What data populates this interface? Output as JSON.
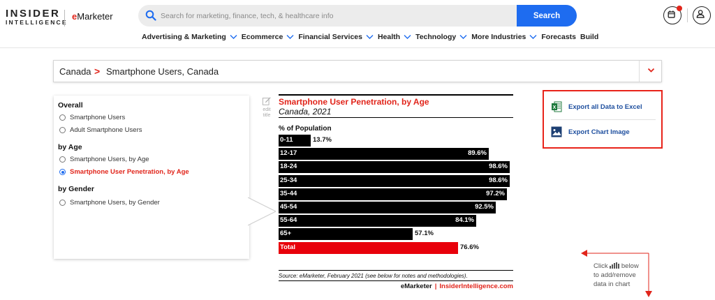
{
  "header": {
    "logo_top": "INSIDER",
    "logo_bottom": "INTELLIGENCE",
    "emarketer_e": "e",
    "emarketer_rest": "Marketer",
    "search_placeholder": "Search for marketing, finance, tech, & healthcare info",
    "search_button": "Search",
    "nav": [
      {
        "label": "Advertising & Marketing",
        "has_dropdown": true
      },
      {
        "label": "Ecommerce",
        "has_dropdown": true
      },
      {
        "label": "Financial Services",
        "has_dropdown": true
      },
      {
        "label": "Health",
        "has_dropdown": true
      },
      {
        "label": "Technology",
        "has_dropdown": true
      },
      {
        "label": "More Industries",
        "has_dropdown": true
      },
      {
        "label": "Forecasts",
        "has_dropdown": false
      },
      {
        "label": "Build",
        "has_dropdown": false
      }
    ],
    "icons": [
      "calendar-icon",
      "user-icon"
    ]
  },
  "breadcrumb": {
    "root": "Canada",
    "separator": ">",
    "current": "Smartphone Users, Canada"
  },
  "panel": {
    "groups": [
      {
        "title": "Overall",
        "options": [
          {
            "label": "Smartphone Users",
            "selected": false
          },
          {
            "label": "Adult Smartphone Users",
            "selected": false
          }
        ]
      },
      {
        "title": "by Age",
        "options": [
          {
            "label": "Smartphone Users, by Age",
            "selected": false
          },
          {
            "label": "Smartphone User Penetration, by Age",
            "selected": true
          }
        ]
      },
      {
        "title": "by Gender",
        "options": [
          {
            "label": "Smartphone Users, by Gender",
            "selected": false
          }
        ]
      }
    ]
  },
  "edit": {
    "line1": "edit",
    "line2": "title"
  },
  "chart_data": {
    "type": "bar",
    "orientation": "horizontal",
    "title": "Smartphone User Penetration, by Age",
    "subtitle": "Canada, 2021",
    "ylabel": "% of Population",
    "categories": [
      "0-11",
      "12-17",
      "18-24",
      "25-34",
      "35-44",
      "45-54",
      "55-64",
      "65+",
      "Total"
    ],
    "values": [
      13.7,
      89.6,
      98.6,
      98.6,
      97.2,
      92.5,
      84.1,
      57.1,
      76.6
    ],
    "value_labels": [
      "13.7%",
      "89.6%",
      "98.6%",
      "98.6%",
      "97.2%",
      "92.5%",
      "84.1%",
      "57.1%",
      "76.6%"
    ],
    "highlight": {
      "category": "Total",
      "color": "#e8000b"
    },
    "bar_color": "#000000",
    "xlim": [
      0,
      100
    ],
    "source": "Source: eMarketer, February 2021 (see below for notes and methodologies).",
    "brand_left": "eMarketer",
    "brand_sep": "|",
    "brand_right": "InsiderIntelligence.com"
  },
  "export": {
    "excel_label": "Export all Data to Excel",
    "image_label": "Export Chart Image"
  },
  "hint": {
    "line1": "Click",
    "line1b": "below",
    "line2": "to add/remove",
    "line3": "data in chart"
  },
  "colors": {
    "accent_red": "#e1251b",
    "search_blue": "#1e6cf0",
    "export_blue": "#1d4e9e"
  }
}
